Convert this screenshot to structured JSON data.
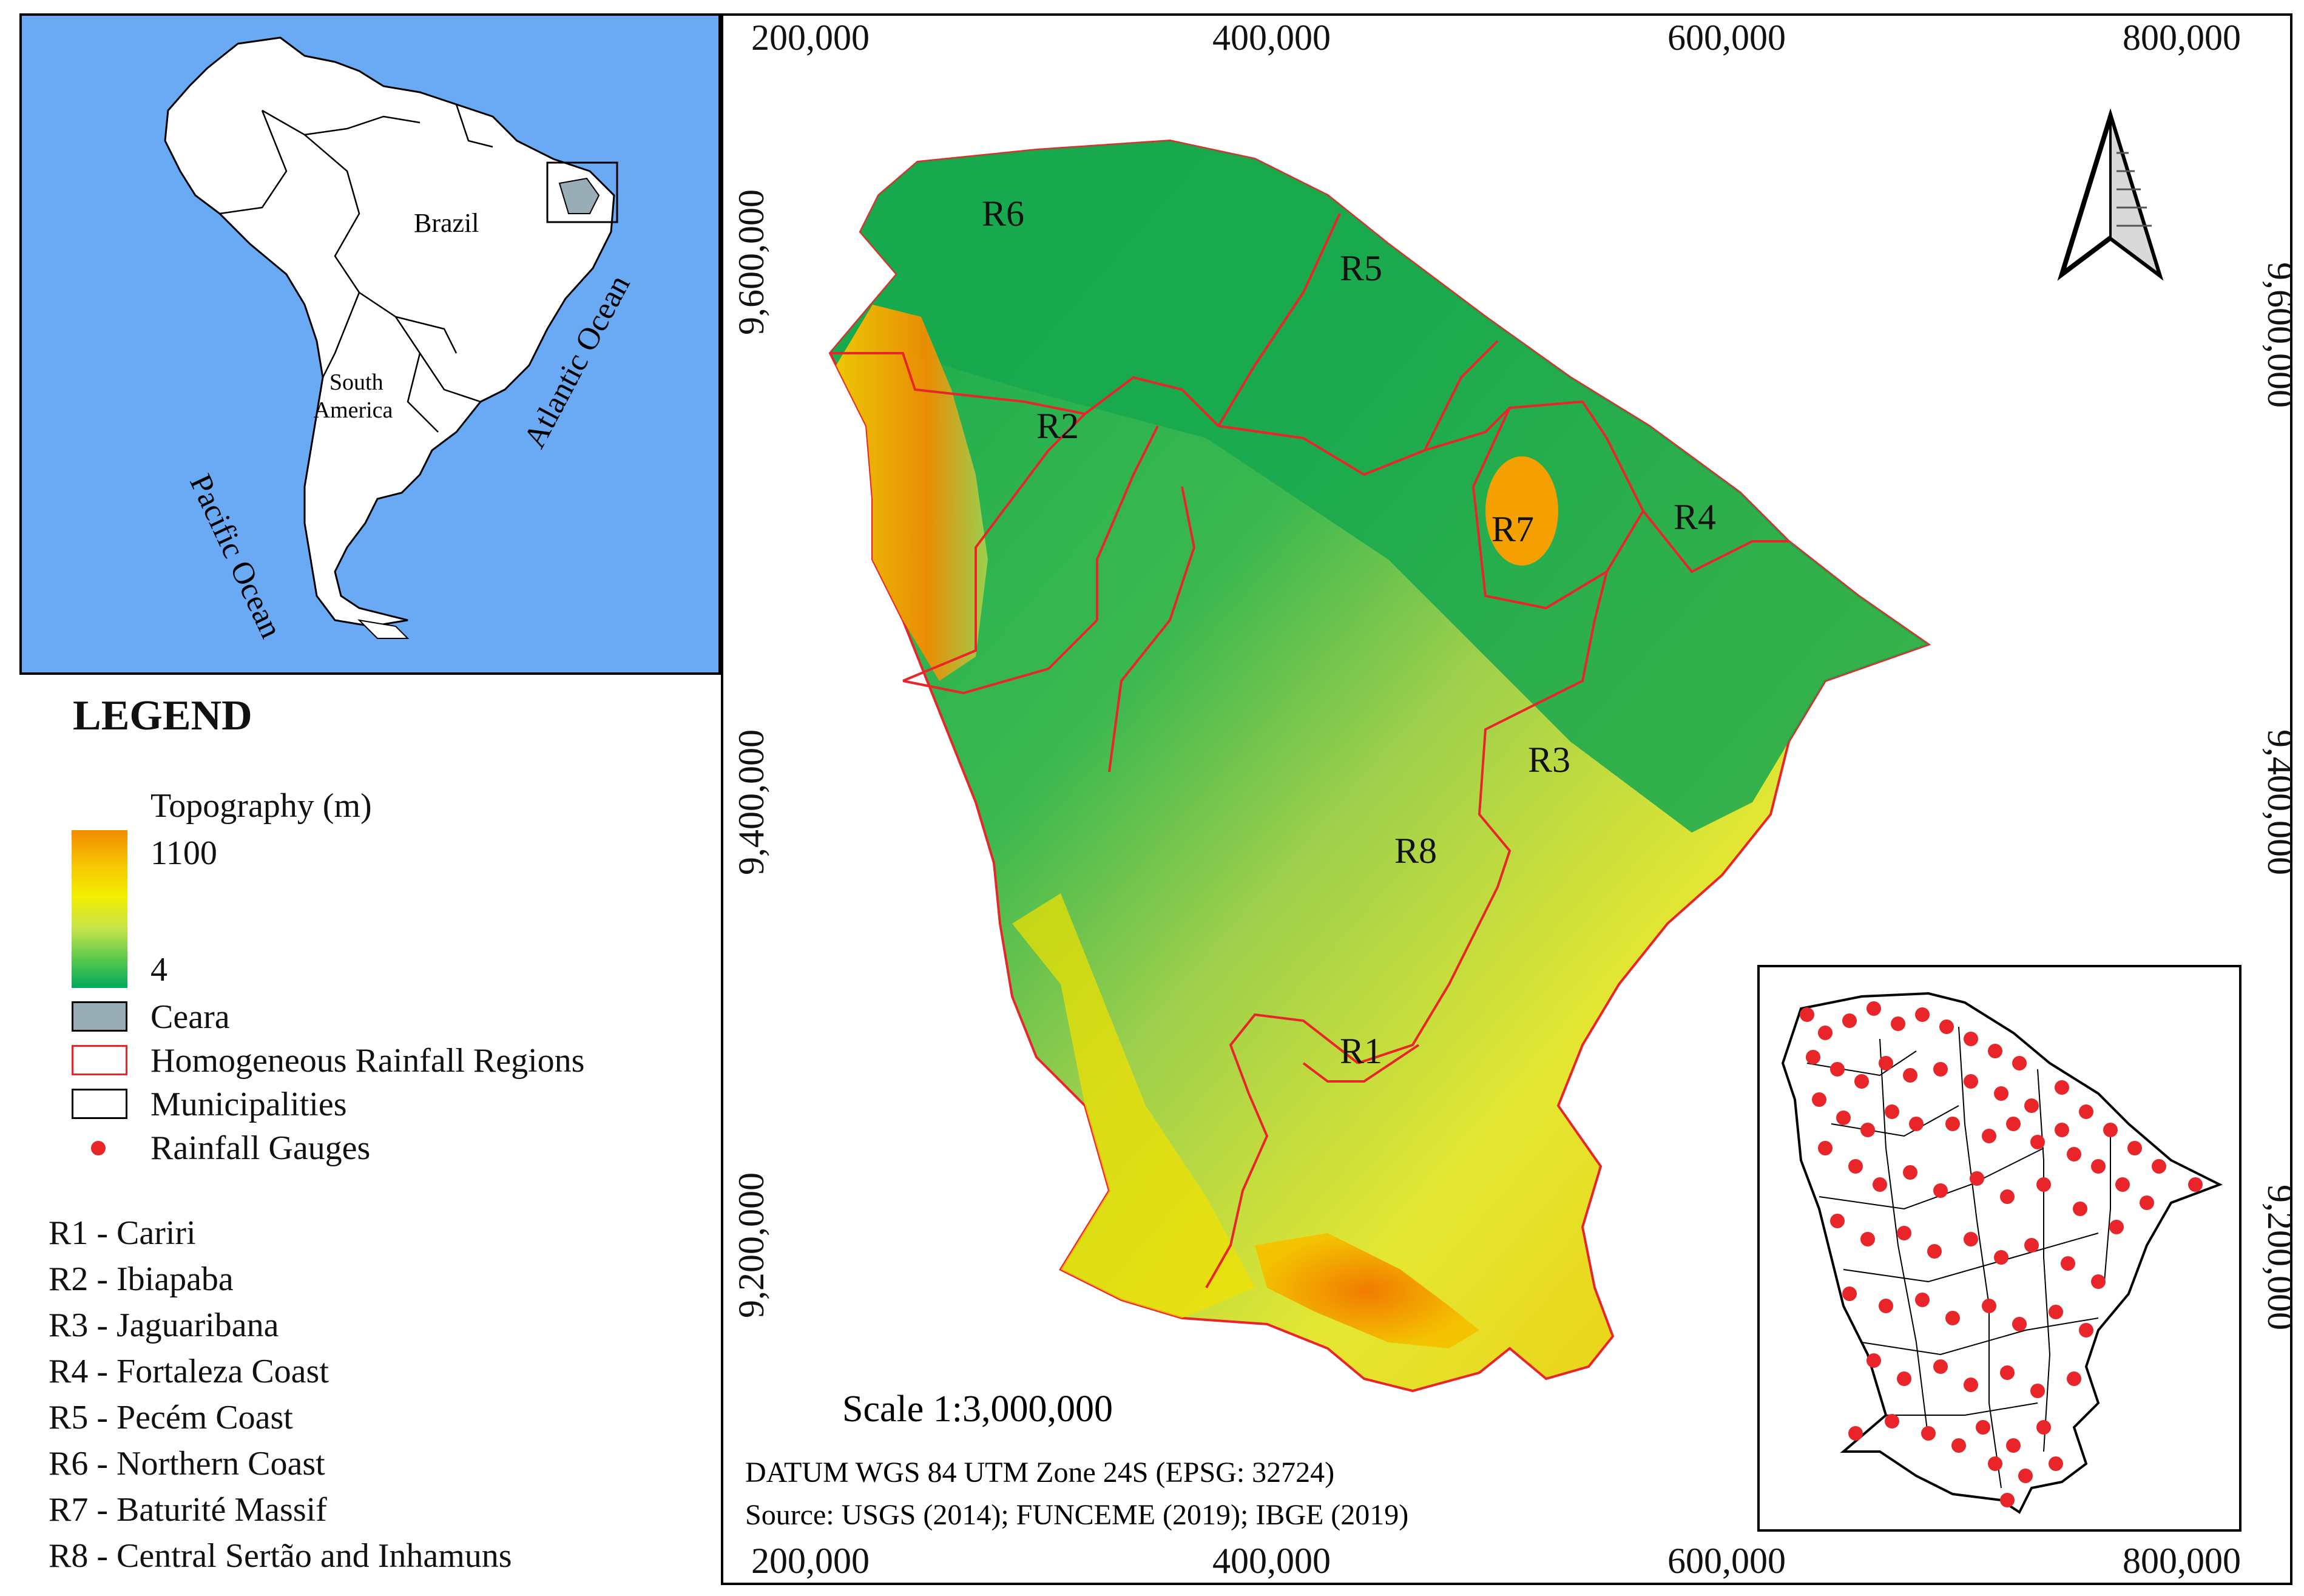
{
  "inset_overview": {
    "labels": {
      "brazil": "Brazil",
      "south_america": "South\nAmerica",
      "pacific": "Pacific Ocean",
      "atlantic": "Atlantic Ocean"
    },
    "colors": {
      "ocean": "#6aa9f3",
      "land": "#ffffff",
      "ceara": "#98adb6"
    }
  },
  "legend": {
    "title": "LEGEND",
    "topo_title": "Topography (m)",
    "topo_max": "1100",
    "topo_min": "4",
    "topo_colors": [
      "#f28a00",
      "#f6c600",
      "#f2ef00",
      "#c7e34a",
      "#57c84d",
      "#00a85a"
    ],
    "items": [
      {
        "label": "Ceara",
        "symbol": "gray-fill-box"
      },
      {
        "label": "Homogeneous Rainfall Regions",
        "symbol": "red-outline-box"
      },
      {
        "label": "Municipalities",
        "symbol": "black-outline-box"
      },
      {
        "label": "Rainfall Gauges",
        "symbol": "red-dot"
      }
    ]
  },
  "regions_list": [
    "R1 - Cariri",
    "R2 - Ibiapaba",
    "R3 - Jaguaribana",
    "R4 - Fortaleza Coast",
    "R5 - Pecém Coast",
    "R6 - Northern Coast",
    "R7 - Baturité Massif",
    "R8 - Central Sertão and Inhamuns"
  ],
  "main_map": {
    "x_ticks": [
      "200,000",
      "400,000",
      "600,000",
      "800,000"
    ],
    "y_ticks": [
      "9,600,000",
      "9,400,000",
      "9,200,000"
    ],
    "region_labels": [
      "R6",
      "R5",
      "R2",
      "R7",
      "R4",
      "R3",
      "R8",
      "R1"
    ],
    "scale": "Scale 1:3,000,000",
    "datum": "DATUM WGS 84 UTM Zone 24S (EPSG: 32724)",
    "source": "Source: USGS (2014); FUNCEME (2019); IBGE (2019)",
    "colors": {
      "boundary": "#e8262a",
      "lowland": "#1fae4f",
      "highland": "#f38b00"
    }
  },
  "gauge_inset": {
    "dot_color": "#e8262a"
  }
}
